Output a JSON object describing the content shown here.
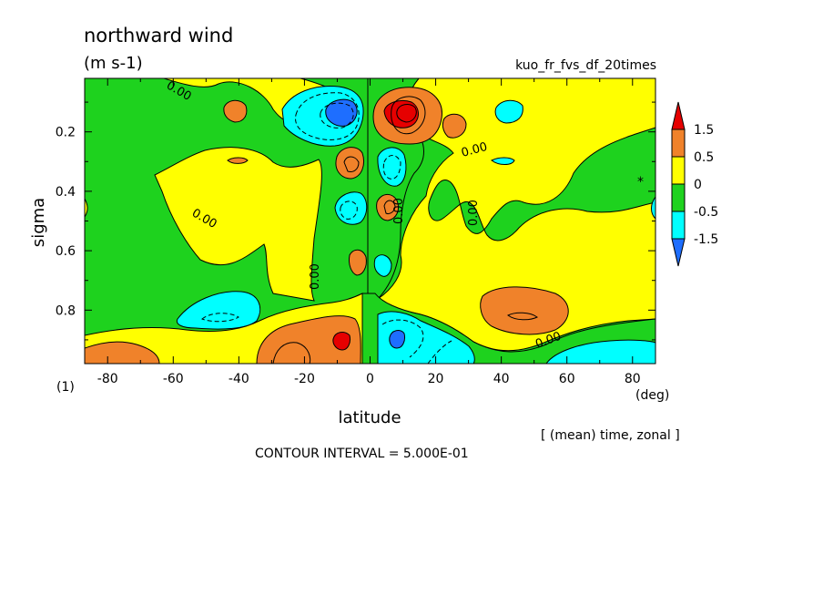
{
  "chart_data": {
    "type": "heatmap",
    "title": "northward wind",
    "units": "(m s-1)",
    "run_name": "kuo_fr_fvs_df_20times",
    "xlabel": "latitude",
    "x_unit": "(deg)",
    "ylabel": "sigma",
    "corner_label": "(1)",
    "xlim": [
      -87,
      87
    ],
    "ylim": [
      0.02,
      0.98
    ],
    "y_inverted": true,
    "x_ticks": [
      "-80",
      "-60",
      "-40",
      "-20",
      "0",
      "20",
      "40",
      "60",
      "80"
    ],
    "x_tick_values": [
      -80,
      -60,
      -40,
      -20,
      0,
      20,
      40,
      60,
      80
    ],
    "y_ticks": [
      "0.2",
      "0.4",
      "0.6",
      "0.8"
    ],
    "y_tick_values": [
      0.2,
      0.4,
      0.6,
      0.8
    ],
    "averaging_note": "[ (mean) time, zonal ]",
    "contour_interval_text": "CONTOUR INTERVAL = 5.000E-01",
    "contour_label": "0.00",
    "colorbar": {
      "labels": [
        "1.5",
        "0.5",
        "0",
        "-0.5",
        "-1.5"
      ],
      "bins": [
        {
          "range": [
            1.0,
            1.5
          ],
          "color": "#f0822a"
        },
        {
          "range": [
            0.0,
            0.5
          ],
          "color": "#ffff00"
        },
        {
          "range": [
            -0.5,
            0.0
          ],
          "color": "#1ed21e"
        },
        {
          "range": [
            -1.0,
            -0.5
          ],
          "color": "#00ffff"
        }
      ],
      "over_color": "#e60000",
      "under_color": "#1e6eff"
    },
    "features": [
      {
        "kind": "min",
        "lat": -12,
        "sigma": 0.14,
        "value": -1.2
      },
      {
        "kind": "max",
        "lat": 11,
        "sigma": 0.13,
        "value": 1.7
      },
      {
        "kind": "max",
        "lat": -10,
        "sigma": 0.9,
        "value": 1.6
      },
      {
        "kind": "min",
        "lat": 9,
        "sigma": 0.91,
        "value": -1.6
      },
      {
        "kind": "max",
        "lat": 45,
        "sigma": 0.83,
        "value": 0.9
      },
      {
        "kind": "min",
        "lat": -45,
        "sigma": 0.82,
        "value": -0.8
      }
    ]
  }
}
